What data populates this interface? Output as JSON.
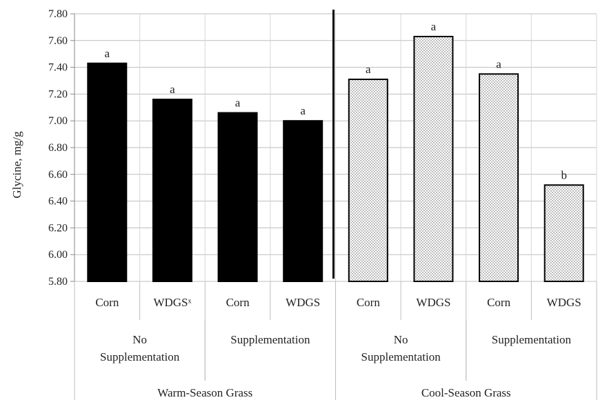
{
  "chart_data": {
    "type": "bar",
    "ylabel": "Glycine, mg/g",
    "xlabel": "",
    "title": "",
    "ylim": [
      5.8,
      7.8
    ],
    "ytick_step": 0.2,
    "y_tick_labels": [
      "5.80",
      "6.00",
      "6.20",
      "6.40",
      "6.60",
      "6.80",
      "7.00",
      "7.20",
      "7.40",
      "7.60",
      "7.80"
    ],
    "grid": true,
    "legend": "none",
    "categories": [
      "Corn",
      "WDGSˣ",
      "Corn",
      "WDGS",
      "Corn",
      "WDGS",
      "Corn",
      "WDGS"
    ],
    "values": [
      7.43,
      7.16,
      7.06,
      7.0,
      7.31,
      7.63,
      7.35,
      6.52
    ],
    "significance_letters": [
      "a",
      "a",
      "a",
      "a",
      "a",
      "a",
      "a",
      "b"
    ],
    "supplement_groups": [
      {
        "label_lines": [
          "No",
          "Supplementation"
        ],
        "span": [
          0,
          1
        ]
      },
      {
        "label_lines": [
          "Supplementation"
        ],
        "span": [
          2,
          3
        ]
      },
      {
        "label_lines": [
          "No",
          "Supplementation"
        ],
        "span": [
          4,
          5
        ]
      },
      {
        "label_lines": [
          "Supplementation"
        ],
        "span": [
          6,
          7
        ]
      }
    ],
    "grass_groups": [
      {
        "label": "Warm-Season Grass",
        "span": [
          0,
          3
        ]
      },
      {
        "label": "Cool-Season Grass",
        "span": [
          4,
          7
        ]
      }
    ],
    "colors": {
      "warm_fill": "#000000",
      "cool_fill": "#bdbdbd",
      "cool_hatch": "#ffffff",
      "grid": "#bdbdbd"
    }
  }
}
